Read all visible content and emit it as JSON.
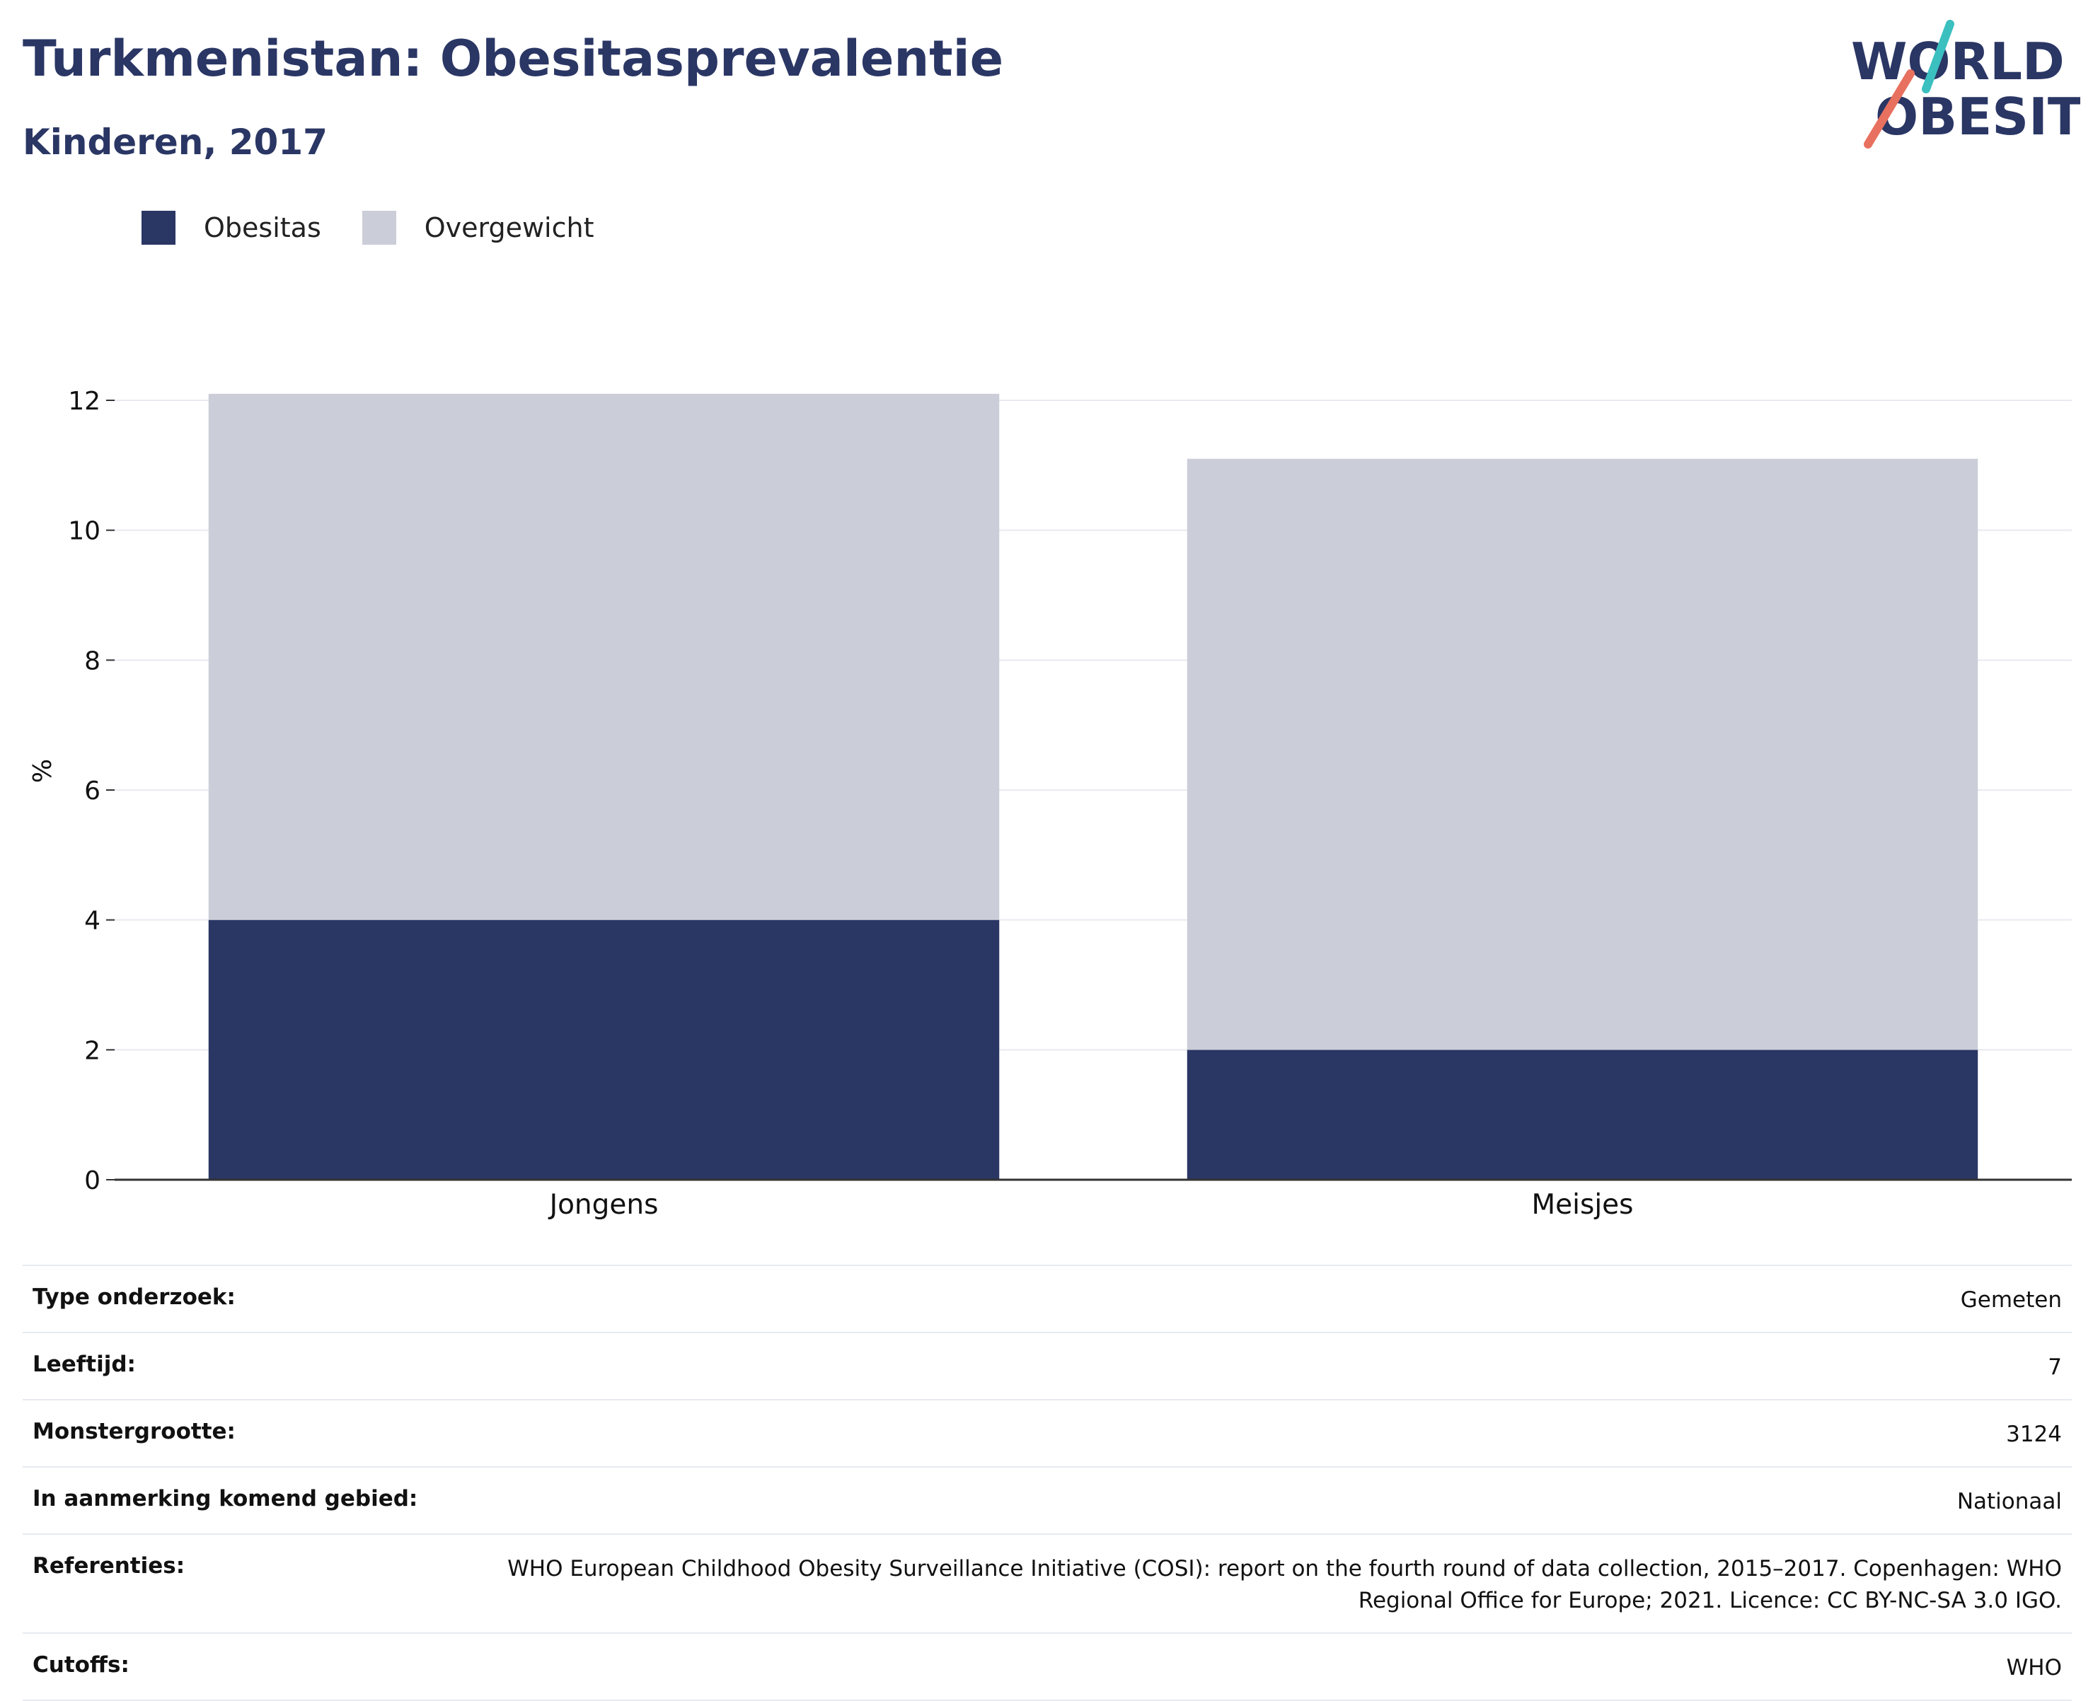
{
  "header": {
    "title": "Turkmenistan: Obesitasprevalentie",
    "subtitle": "Kinderen, 2017"
  },
  "logo": {
    "line1": "WORLD",
    "line2": "OBESITY",
    "colors": {
      "navy": "#2a3664",
      "teal": "#3bbfbf",
      "coral": "#e8705f"
    }
  },
  "legend": [
    {
      "label": "Obesitas",
      "color": "#2a3664"
    },
    {
      "label": "Overgewicht",
      "color": "#cbcdd8"
    }
  ],
  "chart_data": {
    "type": "bar",
    "stacked": true,
    "categories": [
      "Jongens",
      "Meisjes"
    ],
    "series": [
      {
        "name": "Obesitas",
        "values": [
          4.0,
          2.0
        ],
        "color": "#2a3664"
      },
      {
        "name": "Overgewicht",
        "values": [
          8.1,
          9.1
        ],
        "color": "#cbcdd8"
      }
    ],
    "ylabel": "%",
    "ylim": [
      0,
      12
    ],
    "yticks": [
      "0",
      "2",
      "4",
      "6",
      "8",
      "10",
      "12"
    ],
    "grid": true,
    "legend_position": "top-left"
  },
  "meta": [
    {
      "key": "Type onderzoek:",
      "value": "Gemeten"
    },
    {
      "key": "Leeftijd:",
      "value": "7"
    },
    {
      "key": "Monstergrootte:",
      "value": "3124"
    },
    {
      "key": "In aanmerking komend gebied:",
      "value": "Nationaal"
    },
    {
      "key": "Referenties:",
      "value": "WHO European Childhood Obesity Surveillance Initiative (COSI): report on the fourth round of data collection, 2015–2017. Copenhagen: WHO Regional Office for Europe; 2021. Licence: CC BY-NC-SA 3.0 IGO."
    },
    {
      "key": "Cutoffs:",
      "value": "WHO"
    }
  ]
}
